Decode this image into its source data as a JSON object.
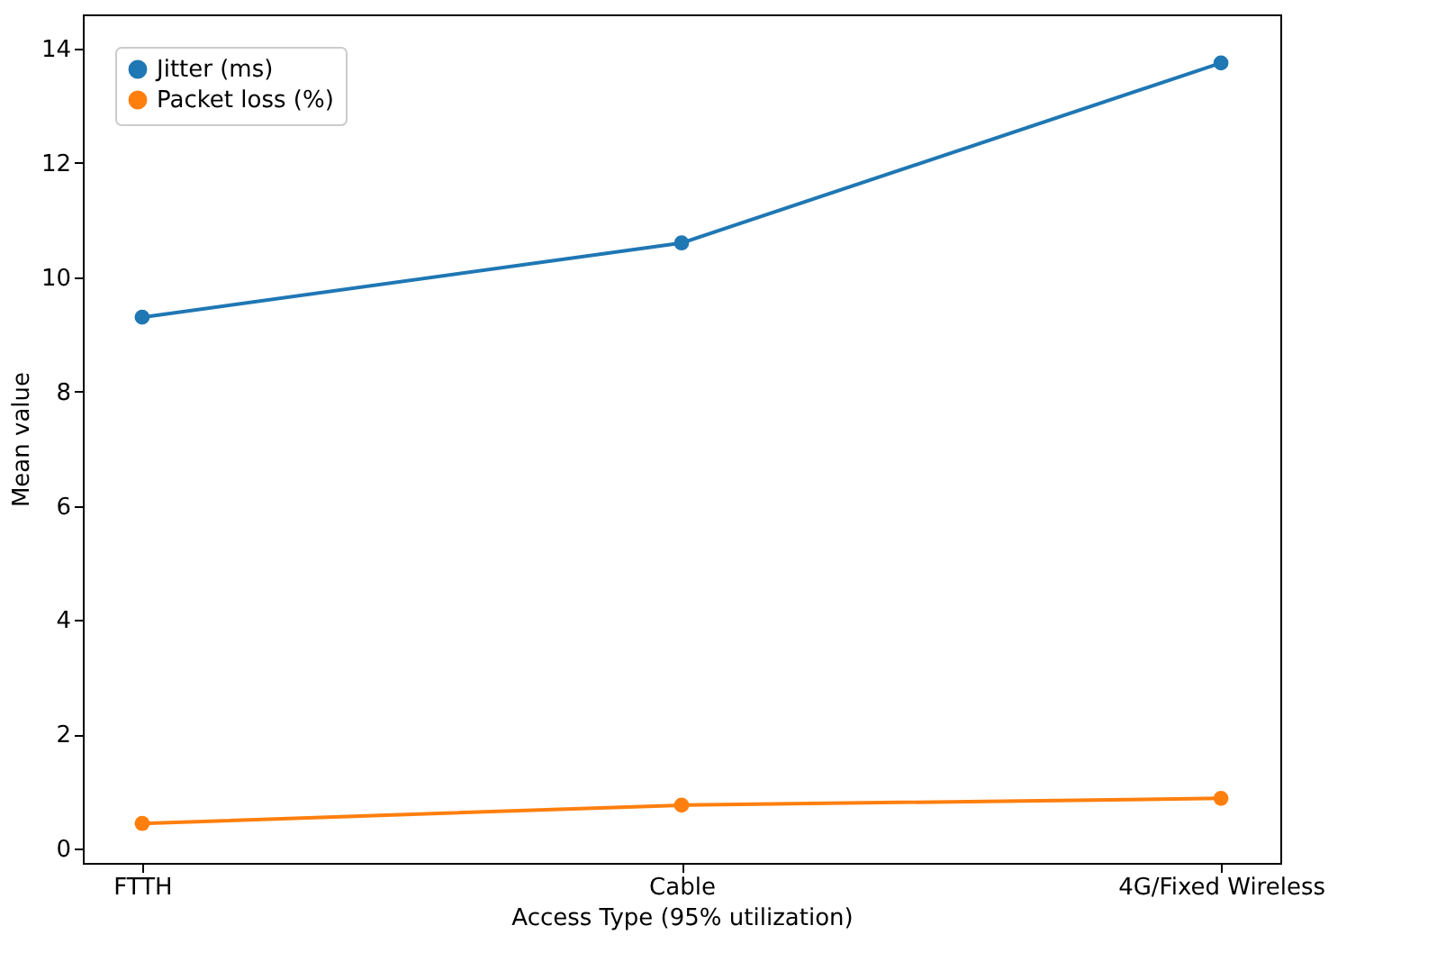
{
  "chart_data": {
    "type": "line",
    "xlabel": "Access Type (95% utilization)",
    "ylabel": "Mean value",
    "categories": [
      "FTTH",
      "Cable",
      "4G/Fixed Wireless"
    ],
    "series": [
      {
        "name": "Jitter (ms)",
        "color": "#1f77b4",
        "values": [
          9.3,
          10.6,
          13.75
        ]
      },
      {
        "name": "Packet loss (%)",
        "color": "#ff7f0e",
        "values": [
          0.44,
          0.76,
          0.88
        ]
      }
    ],
    "ylim": [
      -0.25,
      14.6
    ],
    "yticks": [
      0,
      2,
      4,
      6,
      8,
      10,
      12,
      14
    ],
    "grid": false,
    "legend": "top left",
    "marker": "circle",
    "line_style": "solid"
  }
}
